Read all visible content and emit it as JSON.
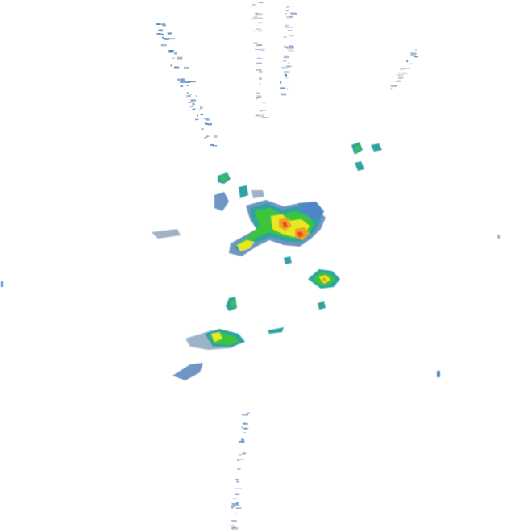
{
  "map": {
    "type": "weather-radar-reflectivity",
    "background": "#ffffff",
    "palette": {
      "faint": "#c8d2de",
      "light": "#9fb3c8",
      "medium": "#6f95c4",
      "strong": "#4f86c6",
      "teal": "#2fa3a0",
      "green": "#3ec43a",
      "yellow": "#e8e820",
      "orange": "#f0a020",
      "red": "#e85020"
    },
    "features": [
      "clutter-spoke-north-west",
      "clutter-spoke-north",
      "clutter-spoke-north-east",
      "clutter-spoke-south",
      "central-storm-cluster",
      "south-west-cell",
      "east-cell",
      "north-east-small-cells"
    ]
  }
}
